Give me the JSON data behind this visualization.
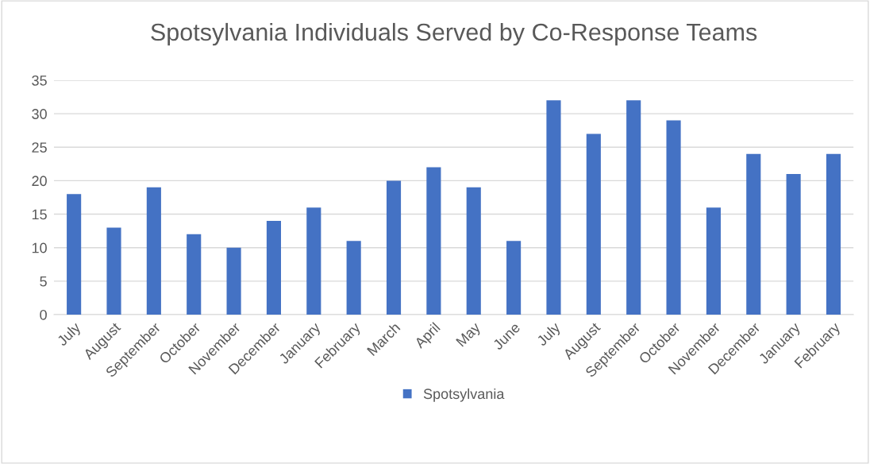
{
  "chart_data": {
    "type": "bar",
    "title": "Spotsylvania Individuals Served by Co-Response Teams",
    "categories": [
      "July",
      "August",
      "September",
      "October",
      "November",
      "December",
      "January",
      "February",
      "March",
      "April",
      "May",
      "June",
      "July",
      "August",
      "September",
      "October",
      "November",
      "December",
      "January",
      "February"
    ],
    "series": [
      {
        "name": "Spotsylvania",
        "color": "#4472c4",
        "values": [
          18,
          13,
          19,
          12,
          10,
          14,
          16,
          11,
          20,
          22,
          19,
          11,
          32,
          27,
          32,
          29,
          16,
          24,
          21,
          24
        ]
      }
    ],
    "ylim": [
      0,
      35
    ],
    "yticks": [
      0,
      5,
      10,
      15,
      20,
      25,
      30,
      35
    ],
    "grid": "y",
    "legend": "bottom"
  }
}
